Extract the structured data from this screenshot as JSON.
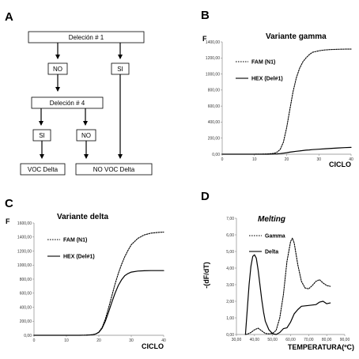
{
  "panels": {
    "a": {
      "letter": "A"
    },
    "b": {
      "letter": "B"
    },
    "c": {
      "letter": "C"
    },
    "d": {
      "letter": "D"
    }
  },
  "flowchart": {
    "del1": "Deleción # 1",
    "no1": "NO",
    "si1": "SI",
    "del4": "Deleción # 4",
    "si2": "SI",
    "no2": "NO",
    "voc_delta": "VOC Delta",
    "no_voc_delta": "NO VOC Delta"
  },
  "chart_data": [
    {
      "id": "gamma",
      "type": "line",
      "title": "Variante gamma",
      "ylabel": "F",
      "xlabel": "CICLO",
      "xlim": [
        0,
        40
      ],
      "ylim": [
        0,
        1400
      ],
      "xticks": [
        0,
        10,
        20,
        30,
        40
      ],
      "xtick_labels": [
        "0",
        "10",
        "20",
        "30",
        "40"
      ],
      "yticks": [
        0,
        200,
        400,
        600,
        800,
        1000,
        1200,
        1400
      ],
      "ytick_labels": [
        "0,00",
        "200,00",
        "400,00",
        "600,00",
        "800,00",
        "1000,00",
        "1200,00",
        "1400,00"
      ],
      "legend_position": "top-left",
      "x": [
        0,
        2,
        4,
        6,
        8,
        10,
        12,
        14,
        16,
        17,
        18,
        19,
        20,
        21,
        22,
        23,
        24,
        25,
        26,
        27,
        28,
        30,
        32,
        34,
        36,
        38,
        40
      ],
      "series": [
        {
          "name": "FAM (N1)",
          "style": "dotted",
          "values": [
            0,
            0,
            0,
            0,
            0,
            0,
            1,
            3,
            10,
            25,
            60,
            150,
            330,
            560,
            780,
            950,
            1070,
            1150,
            1200,
            1240,
            1270,
            1290,
            1300,
            1305,
            1308,
            1310,
            1310
          ]
        },
        {
          "name": "HEX (Del#1)",
          "style": "solid",
          "values": [
            0,
            0,
            0,
            0,
            0,
            0,
            0,
            0,
            2,
            4,
            8,
            13,
            19,
            26,
            31,
            36,
            40,
            45,
            50,
            53,
            57,
            62,
            68,
            73,
            78,
            82,
            85
          ]
        }
      ]
    },
    {
      "id": "delta",
      "type": "line",
      "title": "Variante delta",
      "ylabel": "F",
      "xlabel": "CICLO",
      "xlim": [
        0,
        40
      ],
      "ylim": [
        0,
        1600
      ],
      "xticks": [
        0,
        10,
        20,
        30,
        40
      ],
      "xtick_labels": [
        "0",
        "10",
        "20",
        "30",
        "40"
      ],
      "yticks": [
        0,
        200,
        400,
        600,
        800,
        1000,
        1200,
        1400,
        1600
      ],
      "ytick_labels": [
        "0,00",
        "200,00",
        "400,00",
        "600,00",
        "800,00",
        "1000,00",
        "1200,00",
        "1400,00",
        "1600,00"
      ],
      "legend_position": "top-left",
      "x": [
        0,
        2,
        4,
        6,
        8,
        10,
        12,
        14,
        16,
        18,
        19,
        20,
        21,
        22,
        23,
        24,
        25,
        26,
        27,
        28,
        29,
        30,
        32,
        34,
        36,
        38,
        40
      ],
      "series": [
        {
          "name": "FAM (N1)",
          "style": "dotted",
          "values": [
            0,
            0,
            0,
            0,
            0,
            0,
            0,
            0,
            2,
            8,
            18,
            45,
            110,
            230,
            390,
            560,
            730,
            880,
            1010,
            1120,
            1210,
            1290,
            1380,
            1430,
            1455,
            1465,
            1470
          ]
        },
        {
          "name": "HEX (Del#1)",
          "style": "solid",
          "values": [
            0,
            0,
            0,
            0,
            0,
            0,
            0,
            0,
            2,
            8,
            18,
            42,
            100,
            200,
            330,
            470,
            600,
            710,
            790,
            850,
            880,
            900,
            915,
            920,
            922,
            922,
            922
          ]
        }
      ]
    },
    {
      "id": "melting",
      "type": "line",
      "title": "Melting",
      "ylabel": "-(dF/dT)",
      "xlabel": "TEMPERATURA(ºC)",
      "xlim": [
        30,
        90
      ],
      "ylim": [
        0,
        7
      ],
      "xticks": [
        30,
        40,
        50,
        60,
        70,
        80,
        90
      ],
      "xtick_labels": [
        "30,00",
        "40,00",
        "50,00",
        "60,00",
        "70,00",
        "80,00",
        "90,00"
      ],
      "yticks": [
        0,
        1,
        2,
        3,
        4,
        5,
        6,
        7
      ],
      "ytick_labels": [
        "0,00",
        "1,00",
        "2,00",
        "3,00",
        "4,00",
        "5,00",
        "6,00",
        "7,00"
      ],
      "legend_position": "top-left",
      "series": [
        {
          "name": "Gamma",
          "style": "dotted",
          "points": [
            [
              35,
              0
            ],
            [
              36,
              0.02
            ],
            [
              38,
              0.12
            ],
            [
              40,
              0.28
            ],
            [
              42,
              0.38
            ],
            [
              44,
              0.22
            ],
            [
              46,
              0.06
            ],
            [
              48,
              0.04
            ],
            [
              50,
              0.07
            ],
            [
              52,
              0.25
            ],
            [
              54,
              1.0
            ],
            [
              56,
              2.4
            ],
            [
              58,
              4.4
            ],
            [
              60,
              5.6
            ],
            [
              61,
              5.8
            ],
            [
              62,
              5.5
            ],
            [
              64,
              4.2
            ],
            [
              66,
              3.2
            ],
            [
              68,
              2.8
            ],
            [
              70,
              2.75
            ],
            [
              72,
              2.95
            ],
            [
              74,
              3.2
            ],
            [
              76,
              3.3
            ],
            [
              78,
              3.1
            ],
            [
              80,
              2.95
            ],
            [
              82,
              2.9
            ]
          ]
        },
        {
          "name": "Delta",
          "style": "solid",
          "points": [
            [
              35,
              0
            ],
            [
              36,
              1.5
            ],
            [
              37,
              3.0
            ],
            [
              38,
              4.1
            ],
            [
              39,
              4.7
            ],
            [
              40,
              4.8
            ],
            [
              41,
              4.6
            ],
            [
              42,
              3.9
            ],
            [
              43,
              3.0
            ],
            [
              44,
              2.1
            ],
            [
              45,
              1.35
            ],
            [
              46,
              0.8
            ],
            [
              48,
              0.28
            ],
            [
              50,
              0.05
            ],
            [
              52,
              0.0
            ],
            [
              54,
              0.12
            ],
            [
              56,
              0.35
            ],
            [
              58,
              0.4
            ],
            [
              60,
              0.75
            ],
            [
              62,
              1.25
            ],
            [
              64,
              1.5
            ],
            [
              66,
              1.7
            ],
            [
              70,
              1.75
            ],
            [
              74,
              1.8
            ],
            [
              76,
              1.95
            ],
            [
              78,
              2.0
            ],
            [
              80,
              1.85
            ],
            [
              82,
              1.9
            ]
          ]
        }
      ]
    }
  ]
}
